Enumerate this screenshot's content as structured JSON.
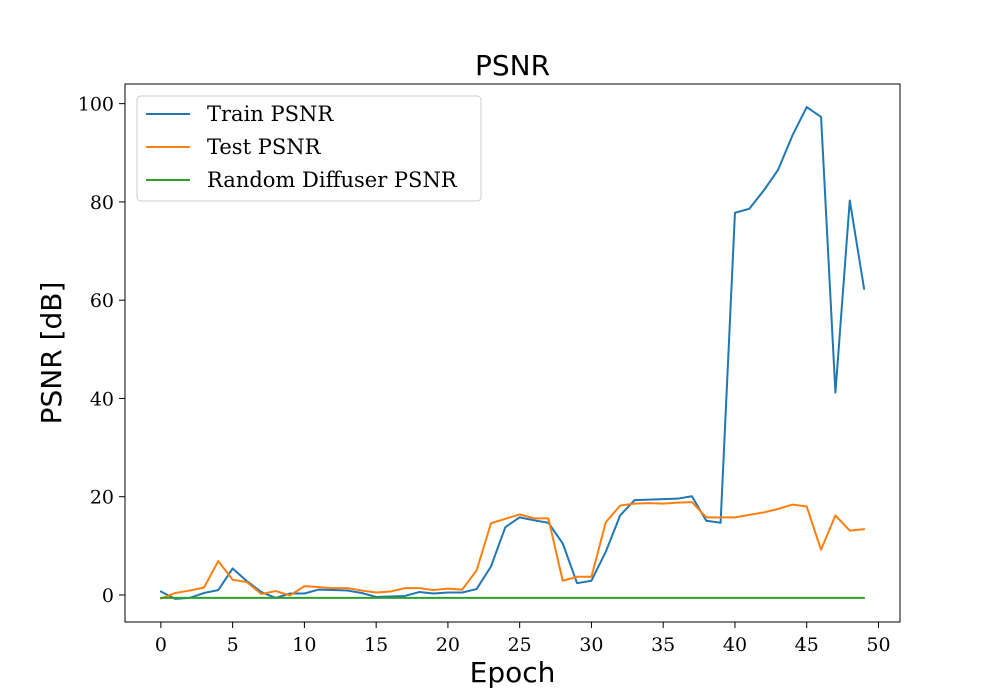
{
  "chart_data": {
    "type": "line",
    "title": "PSNR",
    "xlabel": "Epoch",
    "ylabel": "PSNR [dB]",
    "xlim": [
      -2.5,
      51.5
    ],
    "ylim": [
      -5.5,
      104
    ],
    "xticks": [
      0,
      5,
      10,
      15,
      20,
      25,
      30,
      35,
      40,
      45,
      50
    ],
    "yticks": [
      0,
      20,
      40,
      60,
      80,
      100
    ],
    "grid": false,
    "legend_position": "top-left",
    "x": [
      0,
      1,
      2,
      3,
      4,
      5,
      6,
      7,
      8,
      9,
      10,
      11,
      12,
      13,
      14,
      15,
      16,
      17,
      18,
      19,
      20,
      21,
      22,
      23,
      24,
      25,
      26,
      27,
      28,
      29,
      30,
      31,
      32,
      33,
      34,
      35,
      36,
      37,
      38,
      39,
      40,
      41,
      42,
      43,
      44,
      45,
      46,
      47,
      48,
      49
    ],
    "series": [
      {
        "name": "Train PSNR",
        "color": "#1f77b4",
        "values": [
          0.7,
          -0.8,
          -0.6,
          0.4,
          1.0,
          5.4,
          2.8,
          0.6,
          -0.6,
          0.3,
          0.3,
          1.1,
          1.0,
          0.9,
          0.4,
          -0.4,
          -0.3,
          -0.2,
          0.6,
          0.3,
          0.5,
          0.5,
          1.2,
          5.8,
          13.8,
          15.8,
          15.2,
          14.7,
          10.5,
          2.4,
          2.9,
          8.8,
          16.2,
          19.3,
          19.4,
          19.5,
          19.6,
          20.1,
          15.1,
          14.7,
          77.8,
          78.6,
          82.3,
          86.5,
          93.5,
          99.3,
          97.3,
          41.2,
          80.3,
          62.3
        ]
      },
      {
        "name": "Test PSNR",
        "color": "#ff7f0e",
        "values": [
          -0.7,
          0.4,
          0.9,
          1.5,
          6.9,
          3.1,
          2.6,
          0.2,
          0.8,
          -0.1,
          1.8,
          1.6,
          1.4,
          1.4,
          0.9,
          0.5,
          0.7,
          1.4,
          1.4,
          1.0,
          1.3,
          1.1,
          5.0,
          14.6,
          15.5,
          16.4,
          15.6,
          15.6,
          2.9,
          3.7,
          3.7,
          14.8,
          18.2,
          18.6,
          18.7,
          18.6,
          18.8,
          18.9,
          15.8,
          15.8,
          15.8,
          16.3,
          16.8,
          17.5,
          18.4,
          18.0,
          9.2,
          16.2,
          13.1,
          13.4
        ]
      },
      {
        "name": "Random Diffuser PSNR",
        "color": "#2ca02c",
        "values": [
          -0.6,
          -0.6,
          -0.6,
          -0.6,
          -0.6,
          -0.6,
          -0.6,
          -0.6,
          -0.6,
          -0.6,
          -0.6,
          -0.6,
          -0.6,
          -0.6,
          -0.6,
          -0.6,
          -0.6,
          -0.6,
          -0.6,
          -0.6,
          -0.6,
          -0.6,
          -0.6,
          -0.6,
          -0.6,
          -0.6,
          -0.6,
          -0.6,
          -0.6,
          -0.6,
          -0.6,
          -0.6,
          -0.6,
          -0.6,
          -0.6,
          -0.6,
          -0.6,
          -0.6,
          -0.6,
          -0.6,
          -0.6,
          -0.6,
          -0.6,
          -0.6,
          -0.6,
          -0.6,
          -0.6,
          -0.6,
          -0.6,
          -0.6
        ]
      }
    ]
  }
}
